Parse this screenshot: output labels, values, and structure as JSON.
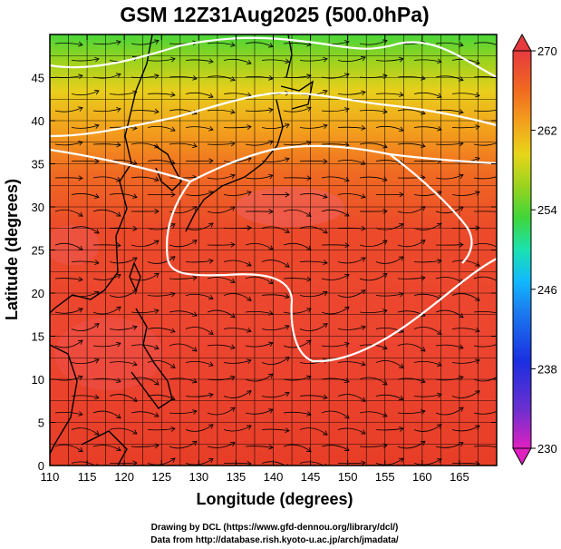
{
  "title": "GSM 12Z31Aug2025 (500.0hPa)",
  "x_axis": {
    "label": "Longitude (degrees)",
    "range": [
      110,
      170
    ],
    "ticks": [
      "110",
      "115",
      "120",
      "125",
      "130",
      "135",
      "140",
      "145",
      "150",
      "155",
      "160",
      "165"
    ]
  },
  "y_axis": {
    "label": "Latitude  (degrees)",
    "range": [
      0,
      50
    ],
    "ticks": [
      "0",
      "5",
      "10",
      "15",
      "20",
      "25",
      "30",
      "35",
      "40",
      "45"
    ]
  },
  "colorbar": {
    "range": [
      230,
      270
    ],
    "ticks": [
      "230",
      "238",
      "246",
      "254",
      "262",
      "270"
    ],
    "colors": [
      "#e020c0",
      "#6a2fd0",
      "#1a2fe0",
      "#12b8ff",
      "#1be2b0",
      "#3fd63a",
      "#9ad31e",
      "#e8d51a",
      "#f3a11c",
      "#f06a20",
      "#e83a2a",
      "#e63a3e"
    ]
  },
  "credits": {
    "line1": "Drawing by DCL (https://www.gfd-dennou.org/library/dcl/)",
    "line2": "Data from http://database.rish.kyoto-u.ac.jp/arch/jmadata/"
  },
  "contour_color": "#ffffff",
  "coastline_color": "#000000"
}
